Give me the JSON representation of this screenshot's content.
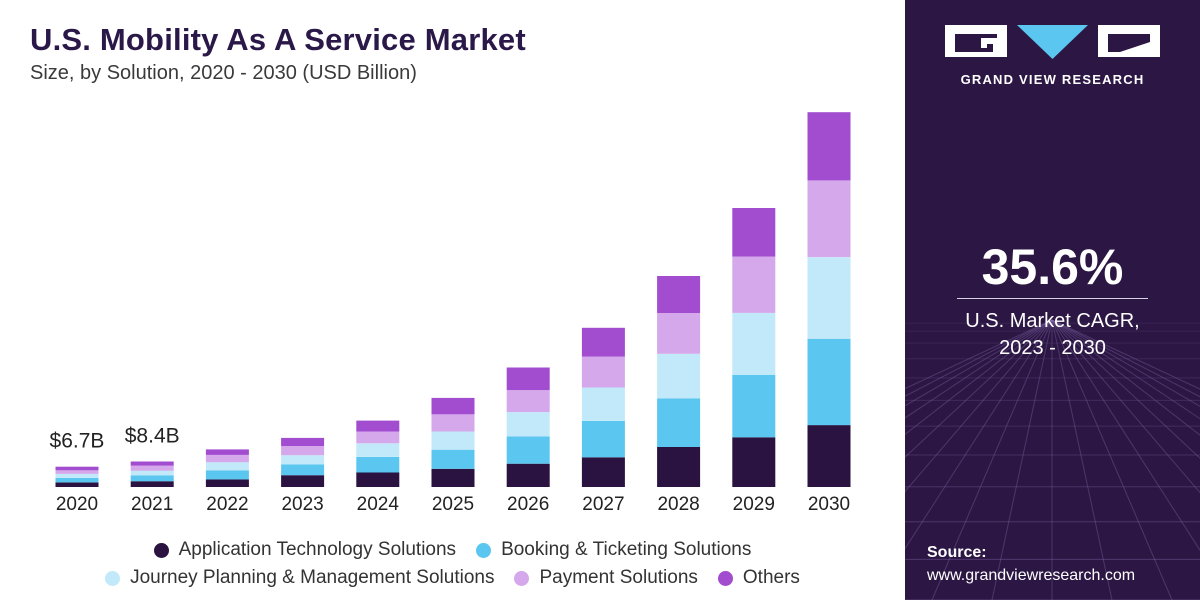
{
  "header": {
    "title": "U.S. Mobility As A Service Market",
    "subtitle": "Size, by Solution, 2020 - 2030 (USD Billion)"
  },
  "side_panel": {
    "brand": "GRAND VIEW RESEARCH",
    "cagr_value": "35.6%",
    "cagr_line1": "U.S. Market CAGR,",
    "cagr_line2": "2023 - 2030",
    "source_label": "Source:",
    "source_url": "www.grandviewresearch.com"
  },
  "colors": {
    "panel_bg": "#2c1744",
    "title": "#2a1848"
  },
  "chart_data": {
    "type": "bar",
    "stacked": true,
    "title": "U.S. Mobility As A Service Market",
    "subtitle": "Size, by Solution, 2020 - 2030 (USD Billion)",
    "xlabel": "",
    "ylabel": "",
    "grid": false,
    "ylim": [
      0,
      124
    ],
    "legend_position": "bottom",
    "categories": [
      "2020",
      "2021",
      "2022",
      "2023",
      "2024",
      "2025",
      "2026",
      "2027",
      "2028",
      "2029",
      "2030"
    ],
    "series": [
      {
        "name": "Application Technology Solutions",
        "color": "#2a1241",
        "values": [
          1.5,
          1.9,
          2.5,
          3.9,
          4.8,
          6.0,
          7.7,
          9.8,
          13.2,
          16.4,
          20.4
        ]
      },
      {
        "name": "Booking & Ticketing Solutions",
        "color": "#5bc6f0",
        "values": [
          1.5,
          1.9,
          3.0,
          3.6,
          5.1,
          6.3,
          9.0,
          12.0,
          16.0,
          20.6,
          28.5
        ]
      },
      {
        "name": "Journey Planning & Management Solutions",
        "color": "#c2e9f9",
        "values": [
          1.3,
          1.6,
          2.7,
          3.0,
          4.5,
          6.0,
          8.0,
          11.0,
          14.7,
          20.4,
          26.9
        ]
      },
      {
        "name": "Payment Solutions",
        "color": "#d4a8ea",
        "values": [
          1.2,
          1.6,
          2.4,
          3.0,
          3.9,
          5.7,
          7.2,
          10.2,
          13.5,
          18.6,
          25.3
        ]
      },
      {
        "name": "Others",
        "color": "#a24cd0",
        "values": [
          1.2,
          1.4,
          1.8,
          2.7,
          3.6,
          5.4,
          7.5,
          9.5,
          12.2,
          16.0,
          22.5
        ]
      }
    ],
    "annotations": [
      {
        "category": "2020",
        "text": "$6.7B"
      },
      {
        "category": "2021",
        "text": "$8.4B"
      }
    ]
  }
}
